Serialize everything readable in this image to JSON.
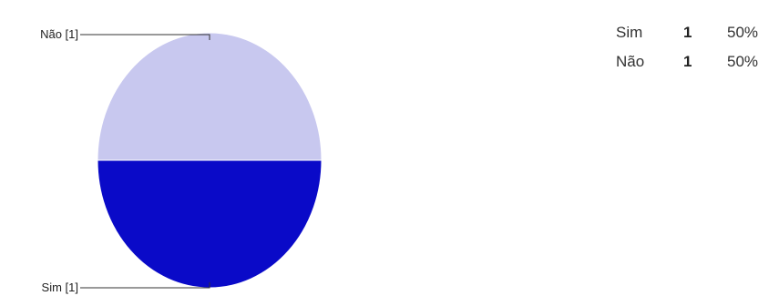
{
  "chart_data": {
    "type": "pie",
    "categories": [
      "Sim",
      "Não"
    ],
    "values": [
      1,
      1
    ],
    "slice_labels": [
      "Sim [1]",
      "Não [1]"
    ],
    "colors": [
      "#0a0ac8",
      "#c8c8ef"
    ],
    "title": ""
  },
  "summary": {
    "rows": [
      {
        "category": "Sim",
        "count": "1",
        "percent": "50%"
      },
      {
        "category": "Não",
        "count": "1",
        "percent": "50%"
      }
    ]
  }
}
